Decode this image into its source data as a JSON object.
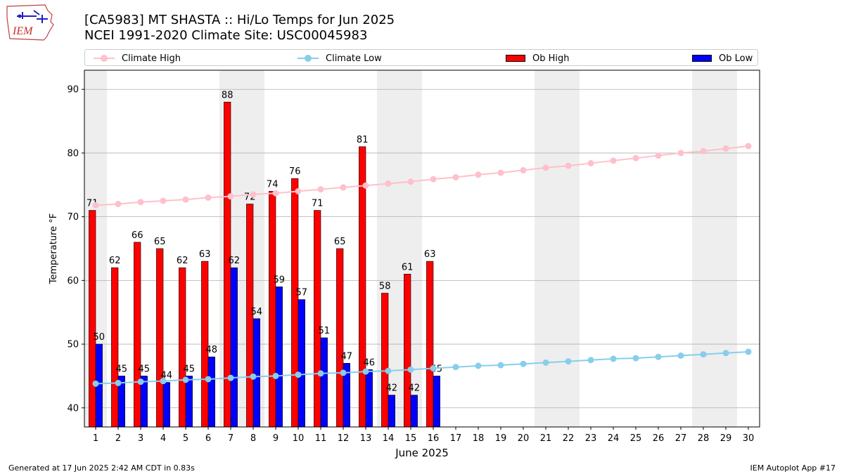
{
  "header": {
    "logo_text": "IEM",
    "title_line1": "[CA5983] MT SHASTA :: Hi/Lo Temps for Jun 2025",
    "title_line2": "NCEI 1991-2020 Climate Site: USC00045983"
  },
  "legend": {
    "items": [
      {
        "label": "Climate High",
        "kind": "line",
        "color": "#ffc0cb"
      },
      {
        "label": "Climate Low",
        "kind": "line",
        "color": "#87ceeb"
      },
      {
        "label": "Ob High",
        "kind": "bar",
        "color": "#ff0000"
      },
      {
        "label": "Ob Low",
        "kind": "bar",
        "color": "#0000ff"
      }
    ]
  },
  "chart_data": {
    "type": "bar",
    "xlabel": "June 2025",
    "ylabel": "Temperature °F",
    "ylim": [
      37,
      93
    ],
    "xlim": [
      0.5,
      30.5
    ],
    "yticks": [
      40,
      50,
      60,
      70,
      80,
      90
    ],
    "days": [
      1,
      2,
      3,
      4,
      5,
      6,
      7,
      8,
      9,
      10,
      11,
      12,
      13,
      14,
      15,
      16,
      17,
      18,
      19,
      20,
      21,
      22,
      23,
      24,
      25,
      26,
      27,
      28,
      29,
      30
    ],
    "weekend_days": [
      1,
      7,
      8,
      14,
      15,
      21,
      22,
      28,
      29
    ],
    "grid": "horizontal",
    "legend_position": "top",
    "ob_high": [
      71,
      62,
      66,
      65,
      62,
      63,
      88,
      72,
      74,
      76,
      71,
      65,
      81,
      58,
      61,
      63
    ],
    "ob_low": [
      50,
      45,
      45,
      44,
      45,
      48,
      62,
      54,
      59,
      57,
      51,
      47,
      46,
      42,
      42,
      45
    ],
    "climate_high": [
      71.8,
      72.0,
      72.3,
      72.5,
      72.7,
      73.0,
      73.2,
      73.5,
      73.7,
      74.0,
      74.3,
      74.6,
      74.9,
      75.2,
      75.5,
      75.9,
      76.2,
      76.6,
      76.9,
      77.3,
      77.7,
      78.0,
      78.4,
      78.8,
      79.2,
      79.6,
      80.0,
      80.3,
      80.7,
      81.1
    ],
    "climate_low": [
      43.8,
      43.9,
      44.1,
      44.2,
      44.4,
      44.5,
      44.7,
      44.9,
      45.0,
      45.2,
      45.4,
      45.5,
      45.7,
      45.8,
      46.0,
      46.2,
      46.4,
      46.6,
      46.7,
      46.9,
      47.1,
      47.3,
      47.5,
      47.7,
      47.8,
      48.0,
      48.2,
      48.4,
      48.6,
      48.8
    ],
    "colors": {
      "ob_high": "#ff0000",
      "ob_low": "#0000ff",
      "climate_high": "#ffc0cb",
      "climate_low": "#87ceeb",
      "weekend_band": "#eeeeee",
      "grid": "#b0b0b0"
    }
  },
  "footer": {
    "generated": "Generated at 17 Jun 2025 2:42 AM CDT in 0.83s",
    "app": "IEM Autoplot App #17"
  }
}
